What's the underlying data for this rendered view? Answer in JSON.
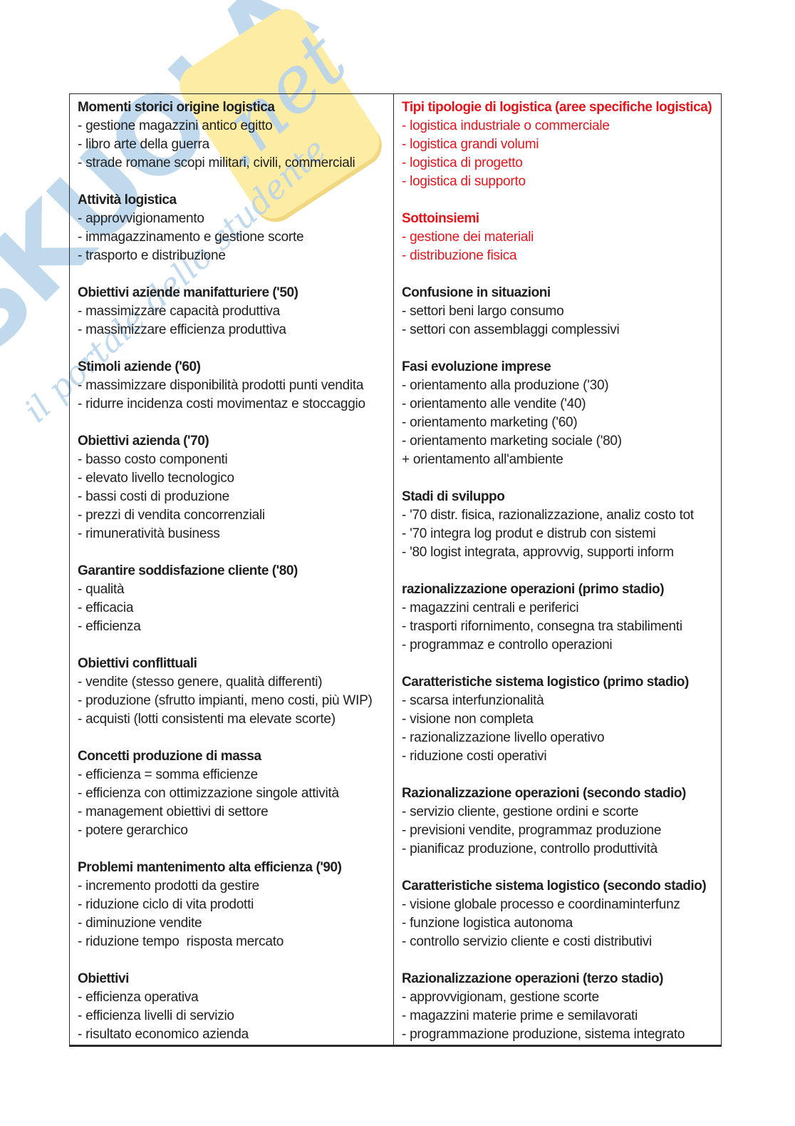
{
  "colors": {
    "text_black": "#1f1f1f",
    "text_red": "#e8141c",
    "border": "#2b2b2b",
    "watermark_blue": "#b7d3eb",
    "watermark_yellow": "#fcecа4"
  },
  "watermark": {
    "brand_letters": "SKUOLA",
    "domain_script": ".net",
    "tagline_script": "il portale dello studente"
  },
  "table": {
    "columns": [
      {
        "side": "left",
        "sections": [
          {
            "title": "Momenti storici origine logistica",
            "color": "black",
            "lines": [
              "- gestione magazzini antico egitto",
              "- libro arte della guerra",
              "- strade romane scopi militari, civili, commerciali"
            ]
          },
          {
            "title": "Attività logistica",
            "color": "black",
            "lines": [
              "- approvvigionamento",
              "- immagazzinamento e gestione scorte",
              "- trasporto e distribuzione"
            ]
          },
          {
            "title": "Obiettivi aziende manifatturiere ('50)",
            "color": "black",
            "lines": [
              "- massimizzare capacità produttiva",
              "- massimizzare efficienza produttiva"
            ]
          },
          {
            "title": "Stimoli aziende ('60)",
            "color": "black",
            "lines": [
              "- massimizzare disponibilità prodotti punti vendita",
              "- ridurre incidenza costi movimentaz e stoccaggio"
            ]
          },
          {
            "title": "Obiettivi azienda ('70)",
            "color": "black",
            "lines": [
              "- basso costo componenti",
              "- elevato livello tecnologico",
              "- bassi costi di produzione",
              "- prezzi di vendita concorrenziali",
              "- rimuneratività business"
            ]
          },
          {
            "title": "Garantire soddisfazione cliente ('80)",
            "color": "black",
            "lines": [
              "- qualità",
              "- efficacia",
              "- efficienza"
            ]
          },
          {
            "title": "Obiettivi conflittuali",
            "color": "black",
            "lines": [
              "- vendite (stesso genere, qualità differenti)",
              "- produzione (sfrutto impianti, meno costi, più WIP)",
              "- acquisti (lotti consistenti ma elevate scorte)"
            ]
          },
          {
            "title": "Concetti produzione di massa",
            "color": "black",
            "lines": [
              "- efficienza = somma efficienze",
              "- efficienza con ottimizzazione singole attività",
              "- management obiettivi di settore",
              "- potere gerarchico"
            ]
          },
          {
            "title": "Problemi mantenimento alta efficienza ('90)",
            "color": "black",
            "lines": [
              "- incremento prodotti da gestire",
              "- riduzione ciclo di vita prodotti",
              "- diminuzione vendite",
              "- riduzione tempo  risposta mercato"
            ]
          },
          {
            "title": "Obiettivi",
            "color": "black",
            "lines": [
              "- efficienza operativa",
              "- efficienza livelli di servizio",
              "- risultato economico azienda"
            ]
          }
        ]
      },
      {
        "side": "right",
        "sections": [
          {
            "title": "Tipi tipologie di logistica (aree specifiche logistica)",
            "color": "red",
            "lines": [
              "- logistica industriale o commerciale",
              "- logistica grandi volumi",
              "- logistica di progetto",
              "- logistica di supporto"
            ]
          },
          {
            "title": "Sottoinsiemi",
            "color": "red",
            "lines": [
              "- gestione dei materiali",
              "- distribuzione fisica"
            ]
          },
          {
            "title": "Confusione in situazioni",
            "color": "black",
            "lines": [
              "- settori beni largo consumo",
              "- settori con assemblaggi complessivi"
            ]
          },
          {
            "title": "Fasi evoluzione imprese",
            "color": "black",
            "lines": [
              "- orientamento alla produzione ('30)",
              "- orientamento alle vendite ('40)",
              "- orientamento marketing ('60)",
              "- orientamento marketing sociale ('80)",
              "+ orientamento all'ambiente"
            ]
          },
          {
            "title": "Stadi di sviluppo",
            "color": "black",
            "lines": [
              "- '70 distr. fisica, razionalizzazione, analiz costo tot",
              "- '70 integra log produt e distrub con sistemi",
              "- '80 logist integrata, approvvig, supporti inform"
            ]
          },
          {
            "title": "razionalizzazione operazioni (primo stadio)",
            "color": "black",
            "lines": [
              "- magazzini centrali e periferici",
              "- trasporti rifornimento, consegna tra stabilimenti",
              "- programmaz e controllo operazioni"
            ]
          },
          {
            "title": "Caratteristiche sistema logistico (primo stadio)",
            "color": "black",
            "lines": [
              "- scarsa interfunzionalità",
              "- visione non completa",
              "- razionalizzazione livello operativo",
              "- riduzione costi operativi"
            ]
          },
          {
            "title": "Razionalizzazione operazioni (secondo stadio)",
            "color": "black",
            "lines": [
              "- servizio cliente, gestione ordini e scorte",
              "- previsioni vendite, programmaz produzione",
              "- pianificaz produzione, controllo produttività"
            ]
          },
          {
            "title": "Caratteristiche sistema logistico (secondo stadio)",
            "color": "black",
            "lines": [
              "- visione globale processo e coordinaminterfunz",
              "- funzione logistica autonoma",
              "- controllo servizio cliente e costi distributivi"
            ]
          },
          {
            "title": "Razionalizzazione operazioni (terzo stadio)",
            "color": "black",
            "lines": [
              "- approvvigionam, gestione scorte",
              "- magazzini materie prime e semilavorati",
              "- programmazione produzione, sistema integrato"
            ]
          }
        ]
      }
    ]
  }
}
